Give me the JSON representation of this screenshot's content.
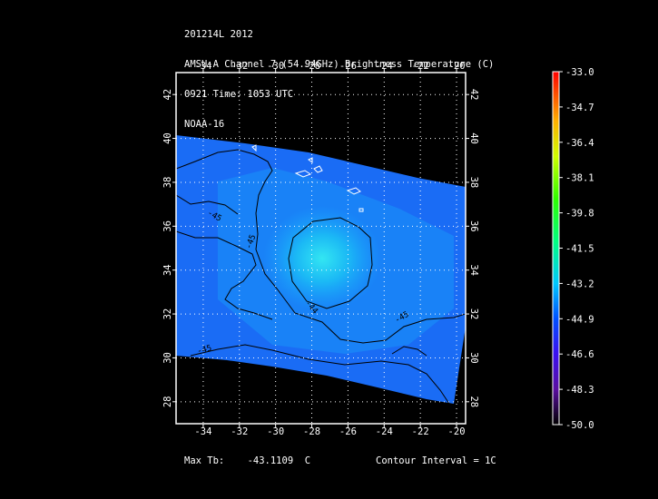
{
  "header": {
    "line1": "201214L 2012",
    "line2": "AMSU-A Channel 7 (54.94GHz) Brightness Temperature (C)",
    "line3": "0921 Time: 1053 UTC",
    "line4": "NOAA-16"
  },
  "map": {
    "lon_range": [
      -35.5,
      -19.5
    ],
    "lat_range": [
      27,
      43
    ],
    "x_ticks": [
      -34,
      -32,
      -30,
      -28,
      -26,
      -24,
      -22,
      -20
    ],
    "y_ticks": [
      28,
      30,
      32,
      34,
      36,
      38,
      40,
      42
    ],
    "grid": "dotted",
    "contour_labels": [
      "-45",
      "-45",
      "-44",
      "-45",
      "-45"
    ]
  },
  "colorbar": {
    "min": -50.0,
    "max": -33.0,
    "labels": [
      "-33.0",
      "-34.7",
      "-36.4",
      "-38.1",
      "-39.8",
      "-41.5",
      "-43.2",
      "-44.9",
      "-46.6",
      "-48.3",
      "-50.0"
    ]
  },
  "footer": {
    "max_tb_label": "Max Tb:",
    "max_tb_value": "-43.1109",
    "max_tb_unit": "C",
    "contour_interval": "Contour Interval = 1C"
  }
}
